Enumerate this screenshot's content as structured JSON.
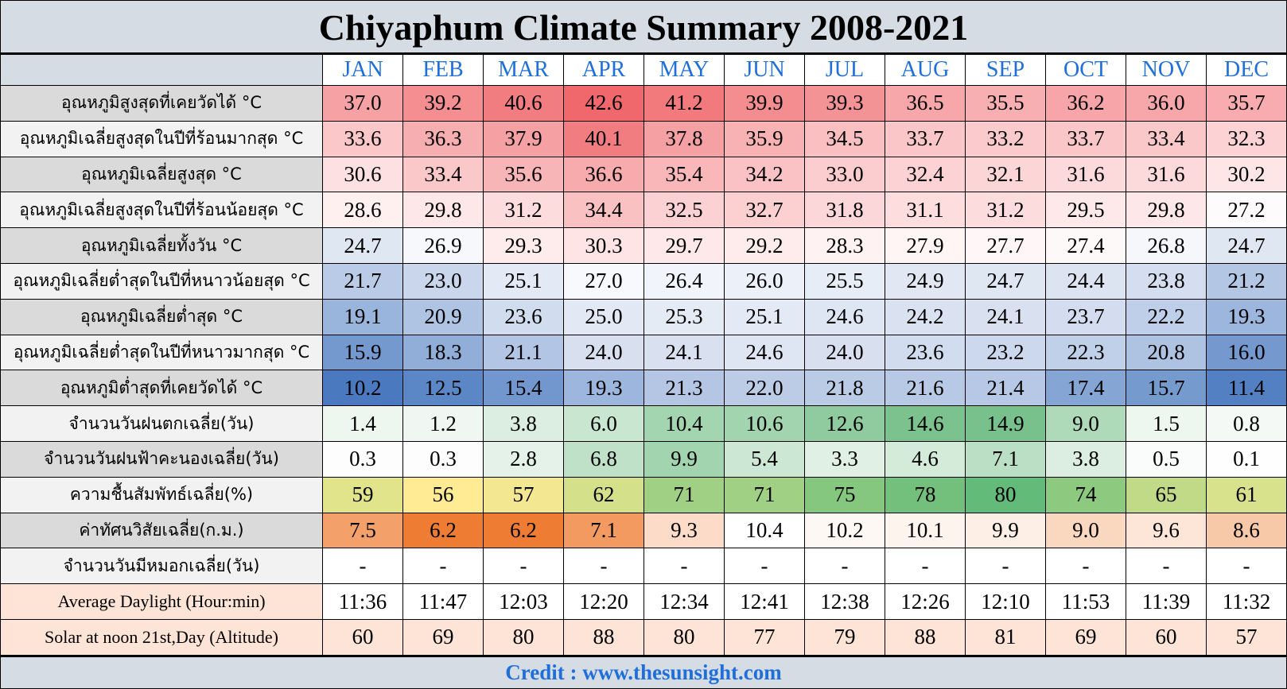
{
  "title": "Chiyaphum Climate Summary 2008-2021",
  "months": [
    "JAN",
    "FEB",
    "MAR",
    "APR",
    "MAY",
    "JUN",
    "JUL",
    "AUG",
    "SEP",
    "OCT",
    "NOV",
    "DEC"
  ],
  "credit": "Credit : www.thesunsight.com",
  "colors": {
    "month_header": "#1f6fdb",
    "credit": "#1f6fdb",
    "label_bg_gray": "#dadada",
    "label_bg_light": "#f2f2f2",
    "daylight_bg": "#fde4d6"
  },
  "rows": [
    {
      "label": "อุณหภูมิสูงสุดที่เคยวัดได้ °C",
      "label_bg": "#dadada",
      "values": [
        "37.0",
        "39.2",
        "40.6",
        "42.6",
        "41.2",
        "39.9",
        "39.3",
        "36.5",
        "35.5",
        "36.2",
        "36.0",
        "35.7"
      ],
      "colors": [
        "#f6a2a4",
        "#f48e91",
        "#f27d80",
        "#f0686b",
        "#f27a7d",
        "#f48d90",
        "#f49396",
        "#f7a7aa",
        "#f8afb2",
        "#f7a5a8",
        "#f7a7aa",
        "#f8acaf"
      ]
    },
    {
      "label": "อุณหภูมิเฉลี่ยสูงสุดในปีที่ร้อนมากสุด °C",
      "label_bg": "#f2f2f2",
      "values": [
        "33.6",
        "36.3",
        "37.9",
        "40.1",
        "37.8",
        "35.9",
        "34.5",
        "33.7",
        "33.2",
        "33.7",
        "33.4",
        "32.3"
      ],
      "colors": [
        "#fbc7c9",
        "#f7aeb0",
        "#f5a0a2",
        "#f27d80",
        "#f5a1a3",
        "#f8b2b4",
        "#f9bfc1",
        "#fbc6c8",
        "#fbcacc",
        "#fbc6c8",
        "#fbc8ca",
        "#fcd2d4"
      ]
    },
    {
      "label": "อุณหภูมิเฉลี่ยสูงสุด °C",
      "label_bg": "#dadada",
      "values": [
        "30.6",
        "33.4",
        "35.6",
        "36.6",
        "35.4",
        "34.2",
        "33.0",
        "32.4",
        "32.1",
        "31.6",
        "31.6",
        "30.2"
      ],
      "colors": [
        "#fde1e2",
        "#fbc8ca",
        "#f8b5b7",
        "#f7abad",
        "#f9b7b9",
        "#fac2c4",
        "#fbcdcf",
        "#fcd2d4",
        "#fcd5d7",
        "#fcd9db",
        "#fcd9db",
        "#fee5e6"
      ]
    },
    {
      "label": "อุณหภูมิเฉลี่ยสูงสุดในปีที่ร้อนน้อยสุด °C",
      "label_bg": "#f2f2f2",
      "values": [
        "28.6",
        "29.8",
        "31.2",
        "34.4",
        "32.5",
        "32.7",
        "31.8",
        "31.1",
        "31.2",
        "29.5",
        "29.8",
        "27.2"
      ],
      "colors": [
        "#fff0f0",
        "#fee7e8",
        "#fddcde",
        "#fac1c3",
        "#fcd1d3",
        "#fccfd1",
        "#fcd7d9",
        "#fdddde",
        "#fddcde",
        "#fee9ea",
        "#fee7e8",
        "#fdfbfb"
      ]
    },
    {
      "label": "อุณหภูมิเฉลี่ยทั้งวัน °C",
      "label_bg": "#dadada",
      "values": [
        "24.7",
        "26.9",
        "29.3",
        "30.3",
        "29.7",
        "29.2",
        "28.3",
        "27.9",
        "27.7",
        "27.4",
        "26.8",
        "24.7"
      ],
      "colors": [
        "#dfe7f3",
        "#f7f8fb",
        "#feebec",
        "#fee4e5",
        "#fee8e9",
        "#feeced",
        "#fff2f2",
        "#fff5f5",
        "#fff7f7",
        "#fef9f9",
        "#f6f7fb",
        "#dfe7f3"
      ]
    },
    {
      "label": "อุณหภูมิเฉลี่ยต่ำสุดในปีที่หนาวน้อยสุด °C",
      "label_bg": "#f2f2f2",
      "values": [
        "21.7",
        "23.0",
        "25.1",
        "27.0",
        "26.4",
        "26.0",
        "25.5",
        "24.9",
        "24.7",
        "24.4",
        "23.8",
        "21.2"
      ],
      "colors": [
        "#b9cbe7",
        "#c9d6ec",
        "#e3eaf5",
        "#f8f9fc",
        "#f1f4fa",
        "#ecf0f8",
        "#e7edf6",
        "#e1e8f4",
        "#dfe7f3",
        "#dce4f2",
        "#d4def0",
        "#b3c6e4"
      ]
    },
    {
      "label": "อุณหภูมิเฉลี่ยต่ำสุด °C",
      "label_bg": "#dadada",
      "values": [
        "19.1",
        "20.9",
        "23.6",
        "25.0",
        "25.3",
        "25.1",
        "24.6",
        "24.2",
        "24.1",
        "23.7",
        "22.2",
        "19.3"
      ],
      "colors": [
        "#9ab5dc",
        "#afc3e3",
        "#d1dcef",
        "#e2e9f4",
        "#e5ebf5",
        "#e3eaf5",
        "#dfe6f3",
        "#dae2f1",
        "#d9e1f1",
        "#d3ddef",
        "#bfcfe9",
        "#9cb6dd"
      ]
    },
    {
      "label": "อุณหภูมิเฉลี่ยต่ำสุดในปีที่หนาวมากสุด °C",
      "label_bg": "#f2f2f2",
      "values": [
        "15.9",
        "18.3",
        "21.1",
        "24.0",
        "24.1",
        "24.6",
        "24.0",
        "23.6",
        "23.2",
        "22.3",
        "20.8",
        "16.0"
      ],
      "colors": [
        "#7399cf",
        "#90aed8",
        "#b2c5e4",
        "#d8e0f0",
        "#d9e1f1",
        "#dfe6f3",
        "#d8e0f0",
        "#d1dcef",
        "#ccd8ed",
        "#c0d0e9",
        "#aec2e2",
        "#7599cf"
      ]
    },
    {
      "label": "อุณหภูมิต่ำสุดที่เคยวัดได้ °C",
      "label_bg": "#dadada",
      "values": [
        "10.2",
        "12.5",
        "15.4",
        "19.3",
        "21.3",
        "22.0",
        "21.8",
        "21.6",
        "21.4",
        "17.4",
        "15.7",
        "11.4"
      ],
      "colors": [
        "#4a79c0",
        "#5b87c6",
        "#7197ce",
        "#9cb6dd",
        "#b4c6e4",
        "#bccce7",
        "#bacbe6",
        "#b8c9e6",
        "#b6c8e5",
        "#85a6d5",
        "#749ace",
        "#5380c3"
      ]
    },
    {
      "label": "จำนวนวันฝนตกเฉลี่ย(วัน)",
      "label_bg": "#f2f2f2",
      "values": [
        "1.4",
        "1.2",
        "3.8",
        "6.0",
        "10.4",
        "10.6",
        "12.6",
        "14.6",
        "14.9",
        "9.0",
        "1.5",
        "0.8"
      ],
      "colors": [
        "#eef6f0",
        "#f0f7f2",
        "#dbeee1",
        "#c8e6d0",
        "#a3d5b1",
        "#a1d4af",
        "#8fcb9f",
        "#7cc28f",
        "#78c18c",
        "#afdaba",
        "#edf6ef",
        "#f4f9f5"
      ]
    },
    {
      "label": "จำนวนวันฝนฟ้าคะนองเฉลี่ย(วัน)",
      "label_bg": "#dadada",
      "values": [
        "0.3",
        "0.3",
        "2.8",
        "6.8",
        "9.9",
        "5.4",
        "3.3",
        "4.6",
        "7.1",
        "3.8",
        "0.5",
        "0.1"
      ],
      "colors": [
        "#fcfdfc",
        "#fcfdfc",
        "#e5f2e9",
        "#bfe1c8",
        "#a2d4af",
        "#cce7d3",
        "#e0f0e4",
        "#d4ebda",
        "#bbdfc5",
        "#dbeee1",
        "#fafcfb",
        "#fefefe"
      ]
    },
    {
      "label": "ความชื้นสัมพัทธ์เฉลี่ย(%)",
      "label_bg": "#f2f2f2",
      "values": [
        "59",
        "56",
        "57",
        "62",
        "71",
        "71",
        "75",
        "78",
        "80",
        "74",
        "65",
        "61"
      ],
      "colors": [
        "#e2e48c",
        "#feeb94",
        "#f3e891",
        "#d4e08a",
        "#9fd083",
        "#9fd083",
        "#86c77f",
        "#72c07b",
        "#63bb79",
        "#8ec980",
        "#c1da87",
        "#d8e18b"
      ]
    },
    {
      "label": "ค่าทัศนวิสัยเฉลี่ย(ก.ม.)",
      "label_bg": "#dadada",
      "values": [
        "7.5",
        "6.2",
        "6.2",
        "7.1",
        "9.3",
        "10.4",
        "10.2",
        "10.1",
        "9.9",
        "9.0",
        "9.6",
        "8.6"
      ],
      "colors": [
        "#f3a06a",
        "#ee7d33",
        "#ee7d33",
        "#f29a5f",
        "#fcdcc8",
        "#ffffff",
        "#fef8f4",
        "#fef4ee",
        "#fdefe6",
        "#fad7bf",
        "#fde6d8",
        "#f8c9a8"
      ]
    },
    {
      "label": "จำนวนวันมีหมอกเฉลี่ย(วัน)",
      "label_bg": "#f2f2f2",
      "values": [
        "-",
        "-",
        "-",
        "-",
        "-",
        "-",
        "-",
        "-",
        "-",
        "-",
        "-",
        "-"
      ],
      "colors": [
        "#ffffff",
        "#ffffff",
        "#ffffff",
        "#ffffff",
        "#ffffff",
        "#ffffff",
        "#ffffff",
        "#ffffff",
        "#ffffff",
        "#ffffff",
        "#ffffff",
        "#ffffff"
      ]
    },
    {
      "label": "Average Daylight (Hour:min)",
      "label_bg": "#fde4d6",
      "en": true,
      "values": [
        "11:36",
        "11:47",
        "12:03",
        "12:20",
        "12:34",
        "12:41",
        "12:38",
        "12:26",
        "12:10",
        "11:53",
        "11:39",
        "11:32"
      ],
      "colors": [
        "#ffffff",
        "#ffffff",
        "#ffffff",
        "#ffffff",
        "#ffffff",
        "#ffffff",
        "#ffffff",
        "#ffffff",
        "#ffffff",
        "#ffffff",
        "#ffffff",
        "#ffffff"
      ]
    },
    {
      "label": "Solar at noon 21st,Day (Altitude)",
      "label_bg": "#fde4d6",
      "en": true,
      "values": [
        "60",
        "69",
        "80",
        "88",
        "80",
        "77",
        "79",
        "88",
        "81",
        "69",
        "60",
        "57"
      ],
      "colors": [
        "#fde4d6",
        "#fde4d6",
        "#fde4d6",
        "#fde4d6",
        "#fde4d6",
        "#fde4d6",
        "#fde4d6",
        "#fde4d6",
        "#fde4d6",
        "#fde4d6",
        "#fde4d6",
        "#fde4d6"
      ]
    }
  ]
}
